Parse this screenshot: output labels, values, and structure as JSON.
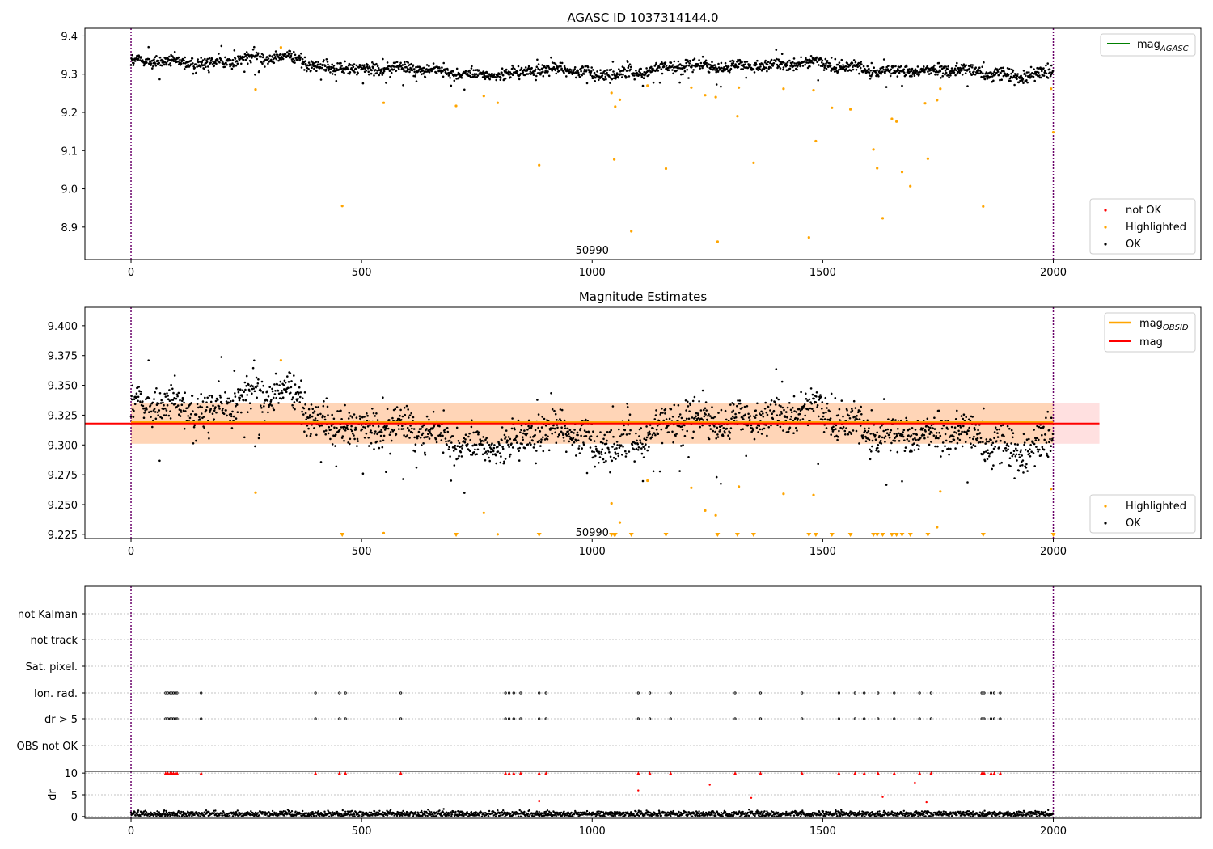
{
  "chart_data": [
    {
      "type": "scatter",
      "title": "AGASC ID 1037314144.0",
      "xlim": [
        -100,
        2320
      ],
      "ylim": [
        8.815,
        9.42
      ],
      "xticks": [
        0,
        500,
        1000,
        1500,
        2000
      ],
      "yticks": [
        8.9,
        9.0,
        9.1,
        9.2,
        9.3,
        9.4
      ],
      "ytick_labels": [
        "8.9",
        "9.0",
        "9.1",
        "9.2",
        "9.3",
        "9.4"
      ],
      "vlines": [
        0,
        2000
      ],
      "annotation": "50990",
      "annotation_pos": [
        1000,
        8.84
      ],
      "legend_lines": [
        {
          "label": "mag",
          "sub": "AGASC",
          "color": "#008000"
        }
      ],
      "legend_points": [
        {
          "label": "not OK",
          "color": "#ff0000"
        },
        {
          "label": "Highlighted",
          "color": "#ffa500"
        },
        {
          "label": "OK",
          "color": "#000000"
        }
      ],
      "ok": {
        "n": 2000,
        "base": 9.315
      },
      "highlighted_points": [
        [
          270,
          9.26
        ],
        [
          325,
          9.37
        ],
        [
          458,
          8.955
        ],
        [
          548,
          9.225
        ],
        [
          705,
          9.217
        ],
        [
          765,
          9.243
        ],
        [
          795,
          9.225
        ],
        [
          885,
          9.062
        ],
        [
          1042,
          9.251
        ],
        [
          1048,
          9.077
        ],
        [
          1050,
          9.215
        ],
        [
          1060,
          9.233
        ],
        [
          1085,
          8.889
        ],
        [
          1120,
          9.27
        ],
        [
          1160,
          9.053
        ],
        [
          1215,
          9.265
        ],
        [
          1245,
          9.245
        ],
        [
          1268,
          9.24
        ],
        [
          1272,
          8.862
        ],
        [
          1315,
          9.19
        ],
        [
          1318,
          9.265
        ],
        [
          1350,
          9.068
        ],
        [
          1415,
          9.262
        ],
        [
          1470,
          8.873
        ],
        [
          1480,
          9.258
        ],
        [
          1485,
          9.125
        ],
        [
          1520,
          9.212
        ],
        [
          1560,
          9.208
        ],
        [
          1610,
          9.103
        ],
        [
          1618,
          9.054
        ],
        [
          1630,
          8.923
        ],
        [
          1650,
          9.183
        ],
        [
          1660,
          9.176
        ],
        [
          1672,
          9.044
        ],
        [
          1690,
          9.007
        ],
        [
          1722,
          9.224
        ],
        [
          1728,
          9.079
        ],
        [
          1748,
          9.232
        ],
        [
          1755,
          9.262
        ],
        [
          1848,
          8.954
        ],
        [
          1995,
          9.262
        ],
        [
          2000,
          9.148
        ]
      ]
    },
    {
      "type": "scatter",
      "title": "Magnitude Estimates",
      "xlim": [
        -100,
        2320
      ],
      "ylim": [
        9.2215,
        9.4155
      ],
      "xticks": [
        0,
        500,
        1000,
        1500,
        2000
      ],
      "yticks": [
        9.225,
        9.25,
        9.275,
        9.3,
        9.325,
        9.35,
        9.375,
        9.4
      ],
      "ytick_labels": [
        "9.225",
        "9.250",
        "9.275",
        "9.300",
        "9.325",
        "9.350",
        "9.375",
        "9.400"
      ],
      "vlines": [
        0,
        2000
      ],
      "annotation": "50990",
      "annotation_pos": [
        1000,
        9.227
      ],
      "mag_mean": 9.318,
      "mag_band": [
        9.301,
        9.335
      ],
      "mag_obsid": 9.319,
      "legend_lines": [
        {
          "label": "mag",
          "sub": "OBSID",
          "color": "#ffa500"
        },
        {
          "label": "mag",
          "sub": "",
          "color": "#ff0000"
        }
      ],
      "legend_points": [
        {
          "label": "Highlighted",
          "color": "#ffa500"
        },
        {
          "label": "OK",
          "color": "#000000"
        }
      ],
      "highlighted_points": [
        [
          270,
          9.26
        ],
        [
          325,
          9.371
        ],
        [
          548,
          9.226
        ],
        [
          765,
          9.243
        ],
        [
          795,
          9.225
        ],
        [
          1042,
          9.251
        ],
        [
          1060,
          9.235
        ],
        [
          1120,
          9.27
        ],
        [
          1215,
          9.264
        ],
        [
          1245,
          9.245
        ],
        [
          1268,
          9.241
        ],
        [
          1318,
          9.265
        ],
        [
          1415,
          9.259
        ],
        [
          1480,
          9.258
        ],
        [
          1748,
          9.231
        ],
        [
          1755,
          9.261
        ],
        [
          1995,
          9.263
        ]
      ],
      "off_scale_markers": [
        458,
        705,
        885,
        1042,
        1048,
        1050,
        1085,
        1160,
        1272,
        1315,
        1350,
        1470,
        1485,
        1520,
        1560,
        1610,
        1618,
        1630,
        1650,
        1660,
        1672,
        1690,
        1728,
        1848,
        2000
      ]
    },
    {
      "type": "scatter",
      "title": "",
      "xlim": [
        -100,
        2320
      ],
      "xticks": [
        0,
        500,
        1000,
        1500,
        2000
      ],
      "vlines": [
        0,
        2000
      ],
      "categories": [
        "not Kalman",
        "not track",
        "Sat. pixel.",
        "Ion. rad.",
        "dr > 5",
        "OBS not OK"
      ],
      "flag_times": [
        75,
        80,
        85,
        88,
        92,
        96,
        100,
        152,
        400,
        452,
        465,
        585,
        812,
        820,
        830,
        845,
        885,
        900,
        1100,
        1125,
        1170,
        1310,
        1365,
        1455,
        1535,
        1570,
        1590,
        1620,
        1655,
        1710,
        1735,
        1845,
        1850,
        1865,
        1872,
        1885
      ],
      "dr": {
        "ylabel": "dr",
        "yticks": [
          0,
          5,
          10
        ],
        "ylim": [
          -0.4,
          10.4
        ],
        "clipped_at": 10,
        "outliers": [
          [
            885,
            3.5
          ],
          [
            1100,
            6.0
          ],
          [
            1255,
            7.3
          ],
          [
            1345,
            4.3
          ],
          [
            1630,
            4.5
          ],
          [
            1700,
            7.8
          ],
          [
            1725,
            3.3
          ]
        ]
      }
    }
  ]
}
